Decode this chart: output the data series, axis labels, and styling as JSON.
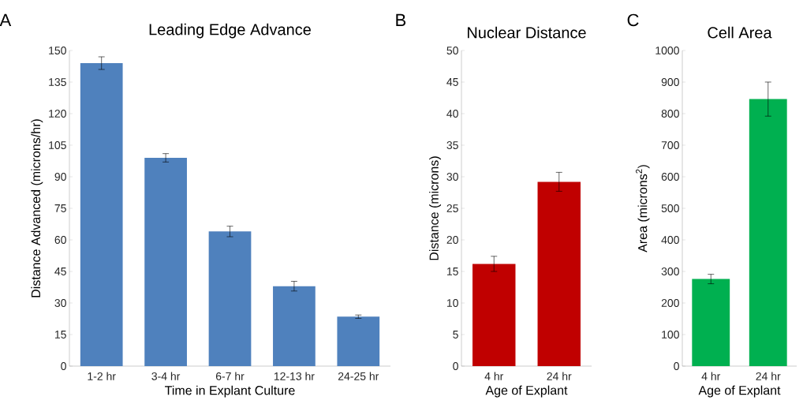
{
  "chart_data": [
    {
      "type": "bar",
      "title": "Leading Edge Advance",
      "xlabel": "Time in Explant Culture",
      "ylabel": "Distance Advanced (microns/hr)",
      "annotations": [
        "A"
      ],
      "categories": [
        "1-2 hr",
        "3-4 hr",
        "6-7 hr",
        "12-13 hr",
        "24-25 hr"
      ],
      "values": [
        144,
        99,
        64,
        38,
        23.5
      ],
      "errors": [
        3,
        2,
        2.5,
        2.3,
        0.8
      ],
      "color": "#4f81bd",
      "ylim": [
        0,
        150
      ],
      "yticks": [
        0,
        15,
        30,
        45,
        60,
        75,
        90,
        105,
        120,
        135,
        150
      ]
    },
    {
      "type": "bar",
      "title": "Nuclear Distance",
      "xlabel": "Age of Explant",
      "ylabel": "Distance (microns)",
      "annotations": [
        "B"
      ],
      "categories": [
        "4 hr",
        "24 hr"
      ],
      "values": [
        16.2,
        29.2
      ],
      "errors": [
        1.2,
        1.5
      ],
      "color": "#c00000",
      "ylim": [
        0,
        50
      ],
      "yticks": [
        0,
        5,
        10,
        15,
        20,
        25,
        30,
        35,
        40,
        45,
        50
      ]
    },
    {
      "type": "bar",
      "title": "Cell Area",
      "xlabel": "Age of Explant",
      "ylabel": "Area (microns$^{2}$)",
      "annotations": [
        "C"
      ],
      "categories": [
        "4 hr",
        "24 hr"
      ],
      "values": [
        276,
        846
      ],
      "errors": [
        15,
        54
      ],
      "color": "#00b050",
      "ylim": [
        0,
        1000
      ],
      "yticks": [
        0,
        100,
        200,
        300,
        400,
        500,
        600,
        700,
        800,
        900,
        1000
      ]
    }
  ]
}
